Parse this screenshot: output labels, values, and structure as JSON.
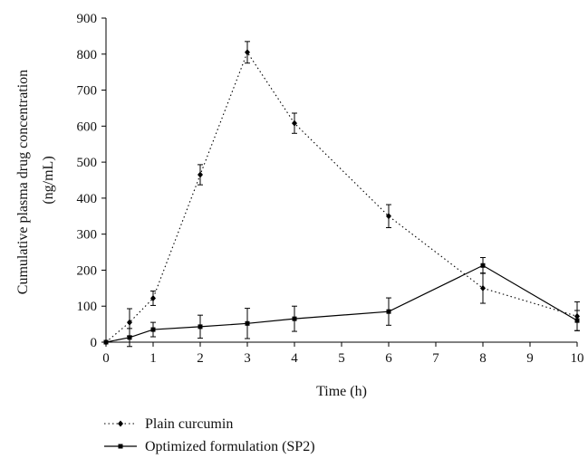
{
  "chart_data": {
    "type": "line",
    "title": "",
    "xlabel": "Time (h)",
    "ylabel_line1": "Cumulative plasma drug concentration",
    "ylabel_line2": "(ng/mL)",
    "xlim": [
      0,
      10
    ],
    "ylim": [
      0,
      900
    ],
    "x_ticks": [
      "0",
      "1",
      "2",
      "3",
      "4",
      "5",
      "6",
      "7",
      "8",
      "9",
      "10"
    ],
    "y_ticks": [
      "0",
      "100",
      "200",
      "300",
      "400",
      "500",
      "600",
      "700",
      "800",
      "900"
    ],
    "grid": false,
    "legend_position": "bottom-left",
    "series": [
      {
        "name": "Plain curcumin",
        "line_style": "dotted",
        "marker": "diamond",
        "x": [
          0,
          0.5,
          1,
          2,
          3,
          4,
          6,
          8,
          10
        ],
        "y": [
          0,
          55,
          122,
          465,
          805,
          608,
          350,
          150,
          72
        ],
        "err": [
          0,
          38,
          20,
          28,
          30,
          28,
          32,
          42,
          40
        ]
      },
      {
        "name": "Optimized formulation (SP2)",
        "line_style": "solid",
        "marker": "square",
        "x": [
          0,
          0.5,
          1,
          2,
          3,
          4,
          6,
          8,
          10
        ],
        "y": [
          0,
          13,
          35,
          43,
          52,
          65,
          85,
          213,
          60
        ],
        "err": [
          0,
          25,
          20,
          32,
          42,
          35,
          38,
          22,
          28
        ]
      }
    ]
  }
}
